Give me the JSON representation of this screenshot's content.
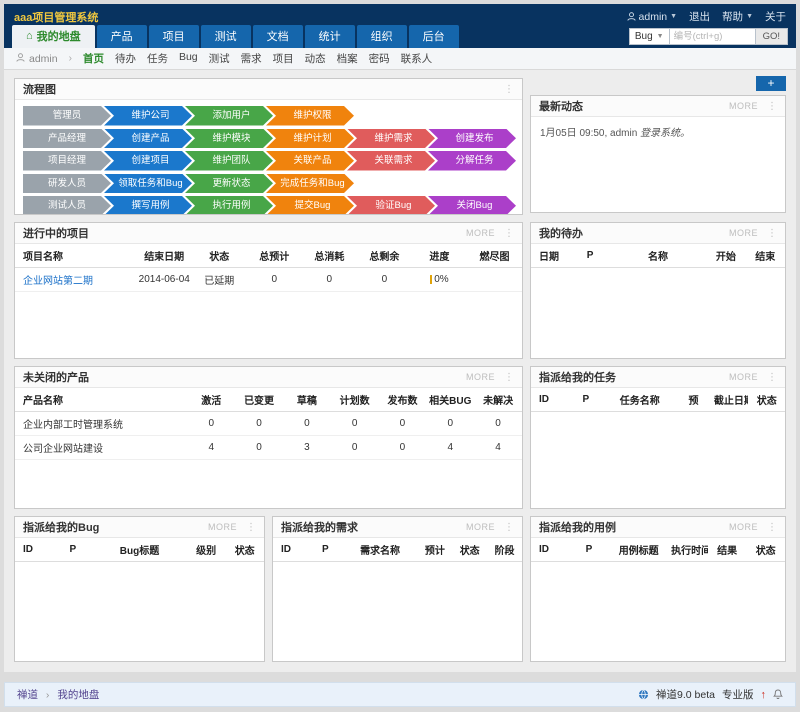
{
  "brand": "aaa项目管理系统",
  "topbar": {
    "user": "admin",
    "logout": "退出",
    "help": "帮助",
    "about": "关于"
  },
  "main_nav": {
    "active_label": "我的地盘",
    "items": [
      "产品",
      "项目",
      "测试",
      "文档",
      "统计",
      "组织",
      "后台"
    ]
  },
  "search": {
    "type": "Bug",
    "placeholder": "编号(ctrl+g)",
    "go_label": "GO!"
  },
  "subnav": {
    "user": "admin",
    "active": "首页",
    "items": [
      "首页",
      "待办",
      "任务",
      "Bug",
      "测试",
      "需求",
      "项目",
      "动态",
      "档案",
      "密码",
      "联系人"
    ]
  },
  "more_label": "MORE",
  "add_button_label": "+",
  "flow": {
    "title": "流程图",
    "role_color": "#9aa3ab",
    "step_colors": [
      "#1b78cc",
      "#48a648",
      "#f0830d",
      "#e05c5c",
      "#ab3fc9"
    ],
    "rows": [
      {
        "role": "管理员",
        "steps": [
          "维护公司",
          "添加用户",
          "维护权限"
        ]
      },
      {
        "role": "产品经理",
        "steps": [
          "创建产品",
          "维护模块",
          "维护计划",
          "维护需求",
          "创建发布"
        ]
      },
      {
        "role": "项目经理",
        "steps": [
          "创建项目",
          "维护团队",
          "关联产品",
          "关联需求",
          "分解任务"
        ]
      },
      {
        "role": "研发人员",
        "steps": [
          "领取任务和Bug",
          "更新状态",
          "完成任务和Bug"
        ]
      },
      {
        "role": "测试人员",
        "steps": [
          "撰写用例",
          "执行用例",
          "提交Bug",
          "验证Bug",
          "关闭Bug"
        ]
      }
    ]
  },
  "panels": {
    "news": {
      "title": "最新动态",
      "entry_text": "1月05日 09:50, admin",
      "entry_action": "登录系统。"
    },
    "ongoing": {
      "title": "进行中的项目",
      "table": {
        "headers": [
          "项目名称",
          "结束日期",
          "状态",
          "总预计",
          "总消耗",
          "总剩余",
          "进度",
          "燃尽图"
        ],
        "rows": [
          [
            "企业网站第二期",
            "2014-06-04",
            "已延期",
            "0",
            "0",
            "0",
            "0%",
            ""
          ]
        ],
        "link_col": 0,
        "progress_col": 6,
        "wide_col": 0,
        "wide_w": "24%"
      }
    },
    "todo": {
      "title": "我的待办",
      "table": {
        "headers": [
          "日期",
          "P",
          "名称",
          "开始",
          "结束"
        ],
        "rows": [],
        "wide_col": 2,
        "wide_w": "38%"
      }
    },
    "products": {
      "title": "未关闭的产品",
      "table": {
        "headers": [
          "产品名称",
          "激活",
          "已变更",
          "草稿",
          "计划数",
          "发布数",
          "相关BUG",
          "未解决"
        ],
        "rows": [
          [
            "企业内部工时管理系统",
            "0",
            "0",
            "0",
            "0",
            "0",
            "0",
            "0"
          ],
          [
            "公司企业网站建设",
            "4",
            "0",
            "3",
            "0",
            "0",
            "4",
            "4"
          ]
        ],
        "wide_col": 0,
        "wide_w": "34%"
      }
    },
    "tasks": {
      "title": "指派给我的任务",
      "table": {
        "headers": [
          "ID",
          "P",
          "任务名称",
          "预",
          "截止日期",
          "状态"
        ],
        "rows": [],
        "wide_col": 2,
        "wide_w": "28%"
      }
    },
    "bugs": {
      "title": "指派给我的Bug",
      "table": {
        "headers": [
          "ID",
          "P",
          "Bug标题",
          "级别",
          "状态"
        ],
        "rows": [],
        "wide_col": 2,
        "wide_w": "38%"
      }
    },
    "stories": {
      "title": "指派给我的需求",
      "table": {
        "headers": [
          "ID",
          "P",
          "需求名称",
          "预计",
          "状态",
          "阶段"
        ],
        "rows": [],
        "wide_col": 2,
        "wide_w": "30%"
      }
    },
    "cases": {
      "title": "指派给我的用例",
      "table": {
        "headers": [
          "ID",
          "P",
          "用例标题",
          "执行时间",
          "结果",
          "状态"
        ],
        "rows": [],
        "wide_col": 2,
        "wide_w": "24%"
      }
    }
  },
  "footer": {
    "crumb_home": "禅道",
    "crumb_page": "我的地盘",
    "version": "禅道9.0 beta",
    "edition": "专业版"
  }
}
